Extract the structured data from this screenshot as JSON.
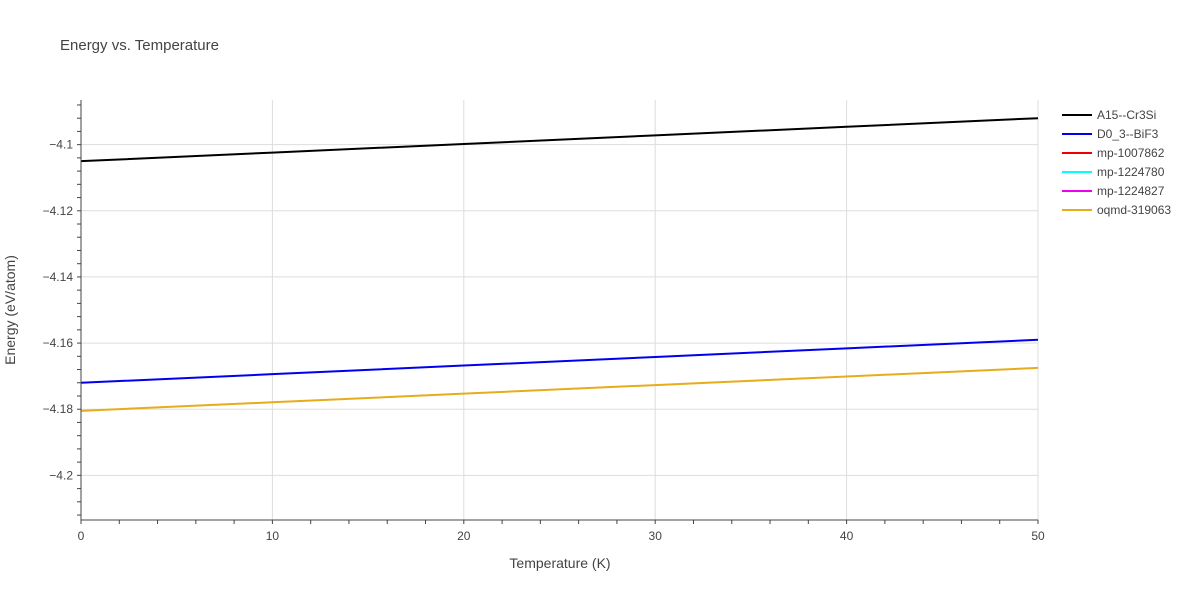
{
  "chart_data": {
    "type": "line",
    "title": "Energy vs. Temperature",
    "xlabel": "Temperature (K)",
    "ylabel": "Energy (eV/atom)",
    "xlim": [
      0,
      50
    ],
    "ylim": [
      -4.2135,
      -4.0865
    ],
    "xticks": [
      0,
      10,
      20,
      30,
      40,
      50
    ],
    "xtick_labels": [
      "0",
      "10",
      "20",
      "30",
      "40",
      "50"
    ],
    "yticks": [
      -4.1,
      -4.12,
      -4.14,
      -4.16,
      -4.18,
      -4.2
    ],
    "ytick_labels": [
      "−4.1",
      "−4.12",
      "−4.14",
      "−4.16",
      "−4.18",
      "−4.2"
    ],
    "grid": true,
    "legend_position": "top-right-outside",
    "series": [
      {
        "name": "A15--Cr3Si",
        "color": "#000000",
        "x": [
          0,
          10,
          20,
          30,
          40,
          50
        ],
        "y": [
          -4.105,
          -4.1024,
          -4.0998,
          -4.0972,
          -4.0946,
          -4.092
        ]
      },
      {
        "name": "D0_3--BiF3",
        "color": "#0000ee",
        "x": [
          0,
          10,
          20,
          30,
          40,
          50
        ],
        "y": [
          -4.172,
          -4.1694,
          -4.1668,
          -4.1642,
          -4.1616,
          -4.159
        ]
      },
      {
        "name": "mp-1007862",
        "color": "#ee0000",
        "x": [],
        "y": []
      },
      {
        "name": "mp-1224780",
        "color": "#00ffff",
        "x": [],
        "y": []
      },
      {
        "name": "mp-1224827",
        "color": "#ee00ee",
        "x": [],
        "y": []
      },
      {
        "name": "oqmd-319063",
        "color": "#e6ac1c",
        "x": [
          0,
          10,
          20,
          30,
          40,
          50
        ],
        "y": [
          -4.1805,
          -4.1779,
          -4.1753,
          -4.1727,
          -4.1701,
          -4.1675
        ]
      }
    ]
  }
}
